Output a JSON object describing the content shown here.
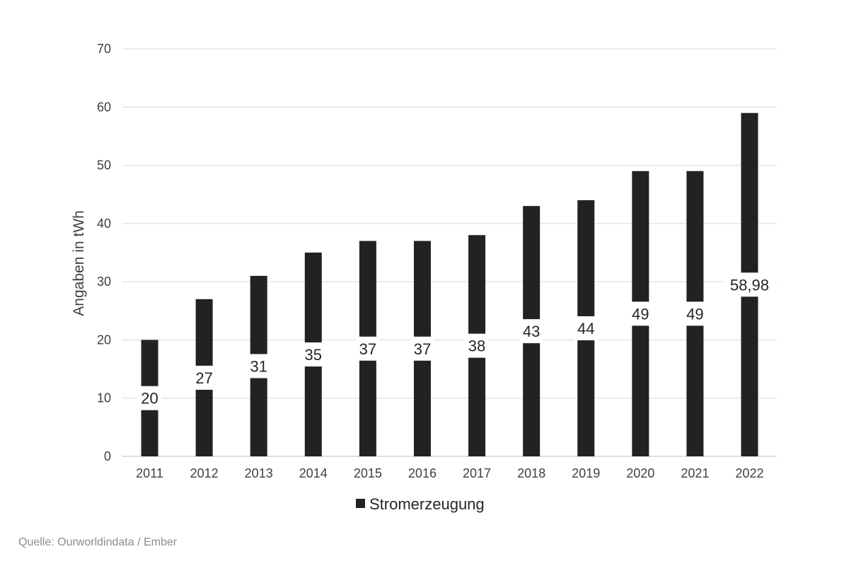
{
  "chart_data": {
    "type": "bar",
    "categories": [
      "2011",
      "2012",
      "2013",
      "2014",
      "2015",
      "2016",
      "2017",
      "2018",
      "2019",
      "2020",
      "2021",
      "2022"
    ],
    "series": [
      {
        "name": "Stromerzeugung",
        "values": [
          20,
          27,
          31,
          35,
          37,
          37,
          38,
          43,
          44,
          49,
          49,
          58.98
        ],
        "labels": [
          "20",
          "27",
          "31",
          "35",
          "37",
          "37",
          "38",
          "43",
          "44",
          "49",
          "49",
          "58,98"
        ]
      }
    ],
    "ylabel": "Angaben in tWh",
    "ylim": [
      0,
      70
    ],
    "yticks": [
      0,
      10,
      20,
      30,
      40,
      50,
      60,
      70
    ],
    "grid": true,
    "legend": "bottom",
    "colors": {
      "bar": "#222222",
      "grid": "#d9d9d9"
    }
  },
  "source": "Quelle: Ourworldindata / Ember"
}
